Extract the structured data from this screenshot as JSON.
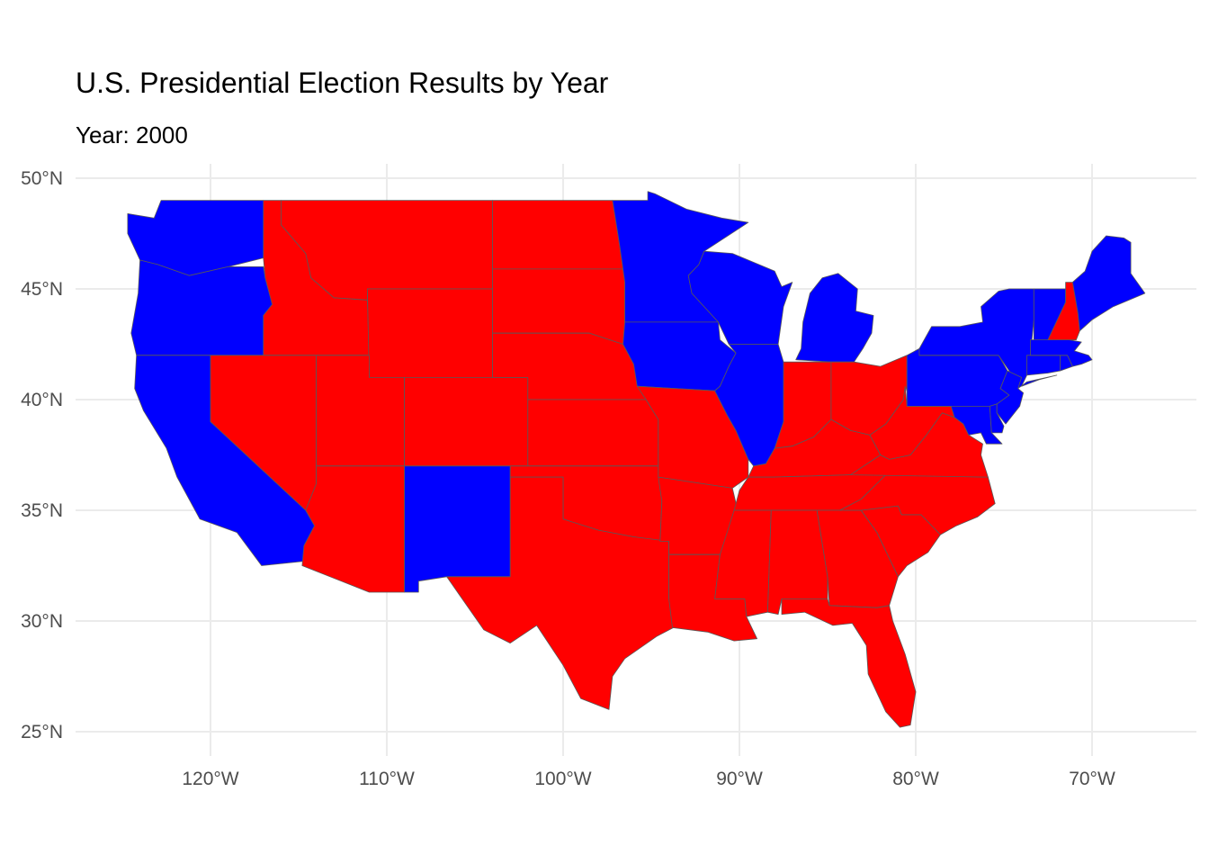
{
  "title": "U.S. Presidential Election Results by Year",
  "subtitle": "Year: 2000",
  "colors": {
    "republican": "#ff0000",
    "democrat": "#0000ff",
    "grid": "#ebebeb",
    "border": "#595959"
  },
  "chart_data": {
    "type": "choropleth",
    "year": 2000,
    "xlim": [
      -127,
      -65
    ],
    "ylim": [
      24,
      50.5
    ],
    "x_ticks": [
      -120,
      -110,
      -100,
      -90,
      -80,
      -70
    ],
    "y_ticks": [
      25,
      30,
      35,
      40,
      45,
      50
    ],
    "x_tick_labels": [
      "120°W",
      "110°W",
      "100°W",
      "90°W",
      "80°W",
      "70°W"
    ],
    "y_tick_labels": [
      "25°N",
      "30°N",
      "35°N",
      "40°N",
      "45°N",
      "50°N"
    ],
    "grid": true,
    "legend": "none",
    "states": [
      {
        "name": "Washington",
        "party": "democrat"
      },
      {
        "name": "Oregon",
        "party": "democrat"
      },
      {
        "name": "California",
        "party": "democrat"
      },
      {
        "name": "Idaho",
        "party": "republican"
      },
      {
        "name": "Nevada",
        "party": "republican"
      },
      {
        "name": "Montana",
        "party": "republican"
      },
      {
        "name": "Wyoming",
        "party": "republican"
      },
      {
        "name": "Utah",
        "party": "republican"
      },
      {
        "name": "Arizona",
        "party": "republican"
      },
      {
        "name": "Colorado",
        "party": "republican"
      },
      {
        "name": "New Mexico",
        "party": "democrat"
      },
      {
        "name": "North Dakota",
        "party": "republican"
      },
      {
        "name": "South Dakota",
        "party": "republican"
      },
      {
        "name": "Nebraska",
        "party": "republican"
      },
      {
        "name": "Kansas",
        "party": "republican"
      },
      {
        "name": "Oklahoma",
        "party": "republican"
      },
      {
        "name": "Texas",
        "party": "republican"
      },
      {
        "name": "Minnesota",
        "party": "democrat"
      },
      {
        "name": "Iowa",
        "party": "democrat"
      },
      {
        "name": "Missouri",
        "party": "republican"
      },
      {
        "name": "Arkansas",
        "party": "republican"
      },
      {
        "name": "Louisiana",
        "party": "republican"
      },
      {
        "name": "Wisconsin",
        "party": "democrat"
      },
      {
        "name": "Illinois",
        "party": "democrat"
      },
      {
        "name": "Michigan",
        "party": "democrat"
      },
      {
        "name": "Indiana",
        "party": "republican"
      },
      {
        "name": "Ohio",
        "party": "republican"
      },
      {
        "name": "Kentucky",
        "party": "republican"
      },
      {
        "name": "Tennessee",
        "party": "republican"
      },
      {
        "name": "Mississippi",
        "party": "republican"
      },
      {
        "name": "Alabama",
        "party": "republican"
      },
      {
        "name": "Georgia",
        "party": "republican"
      },
      {
        "name": "Florida",
        "party": "republican"
      },
      {
        "name": "South Carolina",
        "party": "republican"
      },
      {
        "name": "North Carolina",
        "party": "republican"
      },
      {
        "name": "Virginia",
        "party": "republican"
      },
      {
        "name": "West Virginia",
        "party": "republican"
      },
      {
        "name": "Pennsylvania",
        "party": "democrat"
      },
      {
        "name": "New York",
        "party": "democrat"
      },
      {
        "name": "Maryland",
        "party": "democrat"
      },
      {
        "name": "Delaware",
        "party": "democrat"
      },
      {
        "name": "New Jersey",
        "party": "democrat"
      },
      {
        "name": "Connecticut",
        "party": "democrat"
      },
      {
        "name": "Rhode Island",
        "party": "democrat"
      },
      {
        "name": "Massachusetts",
        "party": "democrat"
      },
      {
        "name": "Vermont",
        "party": "democrat"
      },
      {
        "name": "New Hampshire",
        "party": "republican"
      },
      {
        "name": "Maine",
        "party": "democrat"
      }
    ]
  }
}
